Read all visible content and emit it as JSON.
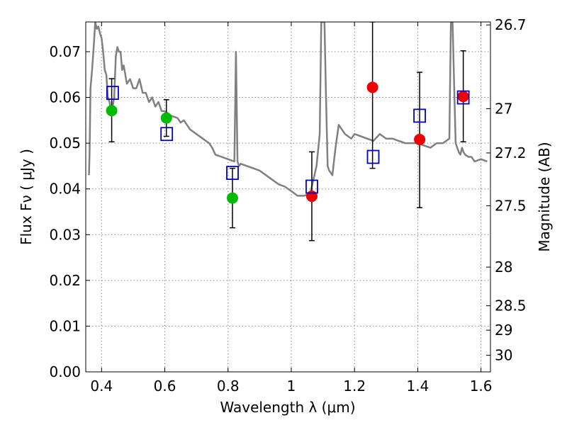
{
  "chart_data": {
    "type": "scatter",
    "title": "",
    "xlabel": "Wavelength  λ (μm)",
    "ylabel": "Flux  Fν  ( μJy )",
    "ylabel_right": "Magnitude (AB)",
    "xlim": [
      0.35,
      1.63
    ],
    "ylim": [
      0.0,
      0.0765
    ],
    "grid": true,
    "legend": "none",
    "x_ticks": [
      {
        "value": 0.4,
        "label": "0.4"
      },
      {
        "value": 0.6,
        "label": "0.6"
      },
      {
        "value": 0.8,
        "label": "0.8"
      },
      {
        "value": 1.0,
        "label": "1"
      },
      {
        "value": 1.2,
        "label": "1.2"
      },
      {
        "value": 1.4,
        "label": "1.4"
      },
      {
        "value": 1.6,
        "label": "1.6"
      }
    ],
    "y_ticks": [
      {
        "value": 0.0,
        "label": "0.00"
      },
      {
        "value": 0.01,
        "label": "0.01"
      },
      {
        "value": 0.02,
        "label": "0.02"
      },
      {
        "value": 0.03,
        "label": "0.03"
      },
      {
        "value": 0.04,
        "label": "0.04"
      },
      {
        "value": 0.05,
        "label": "0.05"
      },
      {
        "value": 0.06,
        "label": "0.06"
      },
      {
        "value": 0.07,
        "label": "0.07"
      }
    ],
    "y_right_ticks": [
      {
        "magnitude": 26.7,
        "label": "26.7"
      },
      {
        "magnitude": 27.0,
        "label": "27"
      },
      {
        "magnitude": 27.2,
        "label": "27.2"
      },
      {
        "magnitude": 27.5,
        "label": "27.5"
      },
      {
        "magnitude": 28.0,
        "label": "28"
      },
      {
        "magnitude": 28.5,
        "label": "28.5"
      },
      {
        "magnitude": 29.0,
        "label": "29"
      },
      {
        "magnitude": 30.0,
        "label": "30"
      }
    ],
    "colors": {
      "model": "#808080",
      "observed_optical": "#00bb00",
      "observed_nir": "#ee0000",
      "model_photometry": "#0000cc",
      "errorbar": "#000000",
      "grid": "#888888"
    },
    "model_spectrum": {
      "x": [
        0.36,
        0.362,
        0.365,
        0.37,
        0.375,
        0.38,
        0.385,
        0.39,
        0.395,
        0.4,
        0.405,
        0.41,
        0.415,
        0.42,
        0.425,
        0.43,
        0.435,
        0.44,
        0.445,
        0.45,
        0.455,
        0.46,
        0.465,
        0.47,
        0.48,
        0.49,
        0.5,
        0.51,
        0.52,
        0.53,
        0.54,
        0.55,
        0.56,
        0.57,
        0.58,
        0.59,
        0.6,
        0.62,
        0.64,
        0.65,
        0.66,
        0.68,
        0.7,
        0.72,
        0.74,
        0.75,
        0.76,
        0.78,
        0.8,
        0.82,
        0.825,
        0.83,
        0.835,
        0.84,
        0.86,
        0.88,
        0.9,
        0.92,
        0.94,
        0.96,
        0.98,
        1.0,
        1.02,
        1.04,
        1.06,
        1.08,
        1.09,
        1.095,
        1.1,
        1.105,
        1.11,
        1.115,
        1.12,
        1.13,
        1.14,
        1.15,
        1.17,
        1.19,
        1.2,
        1.22,
        1.24,
        1.26,
        1.28,
        1.3,
        1.32,
        1.34,
        1.36,
        1.38,
        1.4,
        1.42,
        1.44,
        1.46,
        1.48,
        1.5,
        1.505,
        1.51,
        1.52,
        1.53,
        1.535,
        1.54,
        1.545,
        1.55,
        1.56,
        1.57,
        1.58,
        1.6,
        1.62
      ],
      "y": [
        0.043,
        0.048,
        0.062,
        0.066,
        0.071,
        0.0765,
        0.075,
        0.0755,
        0.074,
        0.073,
        0.07,
        0.066,
        0.065,
        0.06,
        0.059,
        0.057,
        0.058,
        0.06,
        0.069,
        0.071,
        0.07,
        0.07,
        0.066,
        0.067,
        0.063,
        0.064,
        0.062,
        0.062,
        0.064,
        0.061,
        0.061,
        0.059,
        0.06,
        0.058,
        0.059,
        0.057,
        0.057,
        0.056,
        0.0555,
        0.0545,
        0.055,
        0.053,
        0.052,
        0.051,
        0.05,
        0.049,
        0.0475,
        0.047,
        0.0465,
        0.046,
        0.07,
        0.046,
        0.045,
        0.0455,
        0.045,
        0.0445,
        0.044,
        0.043,
        0.042,
        0.041,
        0.0405,
        0.0395,
        0.0385,
        0.0385,
        0.039,
        0.045,
        0.052,
        0.0765,
        0.0765,
        0.0765,
        0.06,
        0.045,
        0.044,
        0.043,
        0.049,
        0.054,
        0.052,
        0.051,
        0.052,
        0.0515,
        0.051,
        0.0505,
        0.052,
        0.051,
        0.051,
        0.0505,
        0.05,
        0.05,
        0.05,
        0.0495,
        0.049,
        0.05,
        0.05,
        0.051,
        0.0765,
        0.0765,
        0.05,
        0.048,
        0.0475,
        0.049,
        0.048,
        0.0475,
        0.047,
        0.047,
        0.046,
        0.0465,
        0.046
      ]
    },
    "observed": [
      {
        "x": 0.432,
        "y": 0.0571,
        "yerr_low": 0.0503,
        "yerr_high": 0.0641,
        "band": "optical"
      },
      {
        "x": 0.605,
        "y": 0.0555,
        "yerr_low": 0.0515,
        "yerr_high": 0.0595,
        "band": "optical"
      },
      {
        "x": 0.814,
        "y": 0.038,
        "yerr_low": 0.0315,
        "yerr_high": 0.0445,
        "band": "optical"
      },
      {
        "x": 1.065,
        "y": 0.0384,
        "yerr_low": 0.0287,
        "yerr_high": 0.0481,
        "band": "nir"
      },
      {
        "x": 1.257,
        "y": 0.0622,
        "yerr_low": 0.0445,
        "yerr_high": 0.0765,
        "band": "nir"
      },
      {
        "x": 1.406,
        "y": 0.0508,
        "yerr_low": 0.0359,
        "yerr_high": 0.0655,
        "band": "nir"
      },
      {
        "x": 1.544,
        "y": 0.0602,
        "yerr_low": 0.0503,
        "yerr_high": 0.0702,
        "band": "nir"
      }
    ],
    "model_photometry": [
      {
        "x": 0.435,
        "y": 0.061
      },
      {
        "x": 0.606,
        "y": 0.052
      },
      {
        "x": 0.814,
        "y": 0.0435
      },
      {
        "x": 1.065,
        "y": 0.0405
      },
      {
        "x": 1.259,
        "y": 0.047
      },
      {
        "x": 1.406,
        "y": 0.056
      },
      {
        "x": 1.544,
        "y": 0.06
      }
    ]
  }
}
